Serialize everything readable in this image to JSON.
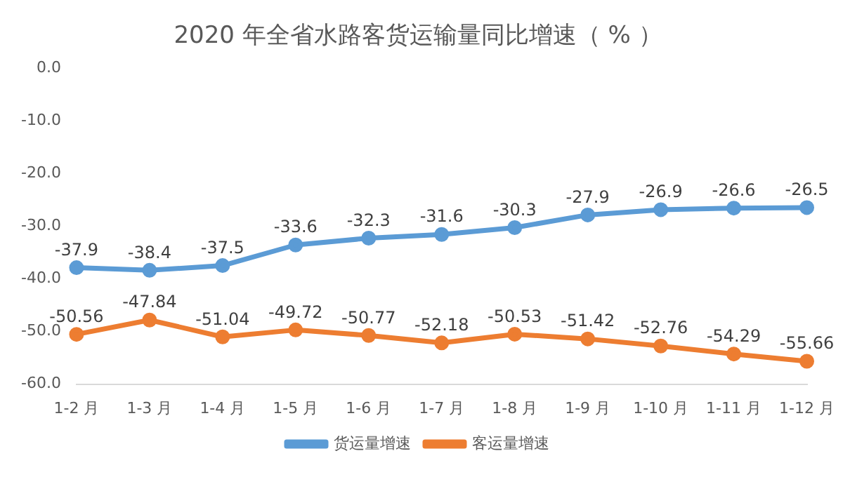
{
  "chart_data": {
    "type": "line",
    "title": "2020 年全省水路客货运输量同比增速（ % ）",
    "categories": [
      "1-2 月",
      "1-3 月",
      "1-4 月",
      "1-5 月",
      "1-6 月",
      "1-7 月",
      "1-8 月",
      "1-9 月",
      "1-10 月",
      "1-11 月",
      "1-12 月"
    ],
    "series": [
      {
        "name": "货运量增速",
        "color": "#5b9bd5",
        "values": [
          -37.9,
          -38.4,
          -37.5,
          -33.6,
          -32.3,
          -31.6,
          -30.3,
          -27.9,
          -26.9,
          -26.6,
          -26.5
        ]
      },
      {
        "name": "客运量增速",
        "color": "#ed7d31",
        "values": [
          -50.56,
          -47.84,
          -51.04,
          -49.72,
          -50.77,
          -52.18,
          -50.53,
          -51.42,
          -52.76,
          -54.29,
          -55.66
        ]
      }
    ],
    "ylim": [
      -60,
      0
    ],
    "yticks": [
      {
        "value": 0,
        "label": "0.0"
      },
      {
        "value": -10,
        "label": "-10.0"
      },
      {
        "value": -20,
        "label": "-20.0"
      },
      {
        "value": -30,
        "label": "-30.0"
      },
      {
        "value": -40,
        "label": "-40.0"
      },
      {
        "value": -50,
        "label": "-50.0"
      },
      {
        "value": -60,
        "label": "-60.0"
      }
    ],
    "grid": false,
    "legend": "bottom",
    "marker": "circle",
    "line_style": "solid",
    "data_labels": true
  }
}
